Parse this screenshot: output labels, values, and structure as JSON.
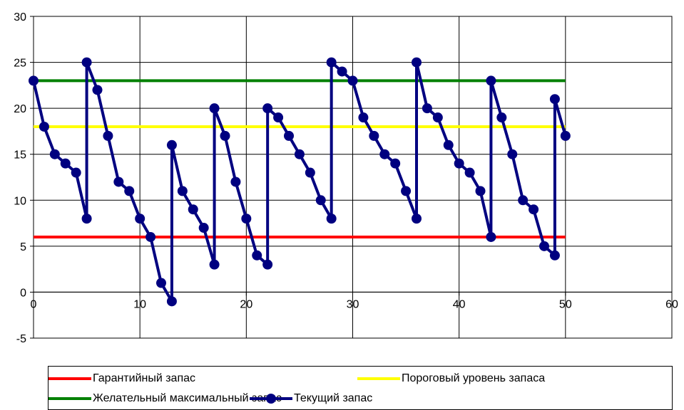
{
  "chart_data": {
    "type": "line",
    "xlim": [
      0,
      60
    ],
    "ylim": [
      -5,
      30
    ],
    "x_ticks": [
      "0",
      "10",
      "20",
      "30",
      "40",
      "50",
      "60"
    ],
    "y_ticks": [
      "-5",
      "0",
      "5",
      "10",
      "15",
      "20",
      "25",
      "30"
    ],
    "grid": true,
    "legend_position": "bottom",
    "series": [
      {
        "name": "Гарантийный запас",
        "color": "#ff0000",
        "marker": false,
        "x": [
          0,
          50
        ],
        "y": [
          6,
          6
        ]
      },
      {
        "name": "Пороговый уровень запаса",
        "color": "#ffff00",
        "marker": false,
        "x": [
          0,
          50
        ],
        "y": [
          18,
          18
        ]
      },
      {
        "name": "Желательный максимальный запас",
        "color": "#008000",
        "marker": false,
        "x": [
          0,
          50
        ],
        "y": [
          23,
          23
        ]
      },
      {
        "name": "Текущий запас",
        "color": "#000080",
        "marker": true,
        "x": [
          0,
          1,
          2,
          3,
          4,
          5,
          5,
          6,
          7,
          8,
          9,
          10,
          11,
          12,
          13,
          13,
          14,
          15,
          16,
          17,
          17,
          18,
          19,
          20,
          21,
          22,
          22,
          23,
          24,
          25,
          26,
          27,
          28,
          28,
          29,
          30,
          31,
          32,
          33,
          34,
          35,
          36,
          36,
          37,
          38,
          39,
          40,
          41,
          42,
          43,
          43,
          44,
          45,
          46,
          47,
          48,
          49,
          49,
          50
        ],
        "y": [
          23,
          18,
          15,
          14,
          13,
          8,
          25,
          22,
          17,
          12,
          11,
          8,
          6,
          1,
          -1,
          16,
          11,
          9,
          7,
          3,
          20,
          17,
          12,
          8,
          4,
          3,
          20,
          19,
          17,
          15,
          13,
          10,
          8,
          25,
          24,
          23,
          19,
          17,
          15,
          14,
          11,
          8,
          25,
          20,
          19,
          16,
          14,
          13,
          11,
          6,
          23,
          19,
          15,
          10,
          9,
          5,
          4,
          21,
          17
        ]
      }
    ]
  }
}
